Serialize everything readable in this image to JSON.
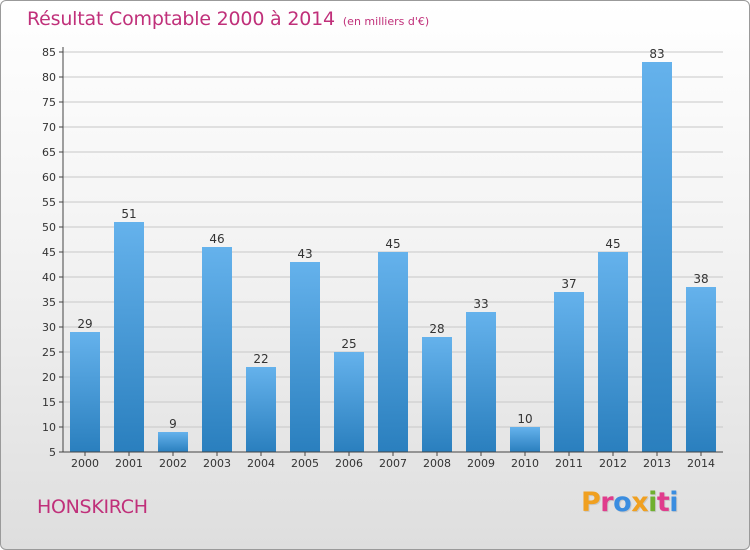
{
  "title": "Résultat Comptable 2000 à 2014",
  "unit": "(en milliers d'€)",
  "commune": "HONSKIRCH",
  "logo": {
    "text": "Proxiti",
    "colors": [
      "#f0a020",
      "#e03c8c",
      "#3a8de0",
      "#f0a020",
      "#70b030",
      "#e03c8c",
      "#3a8de0"
    ]
  },
  "colors": {
    "title": "#c0307a",
    "bar_top": "#65b2ec",
    "bar_bottom": "#2a7fbe",
    "grid": "#c8c8c8",
    "axis": "#444444",
    "label": "#333333"
  },
  "chart_data": {
    "type": "bar",
    "title": "Résultat Comptable 2000 à 2014",
    "subtitle": "(en milliers d'€)",
    "categories": [
      "2000",
      "2001",
      "2002",
      "2003",
      "2004",
      "2005",
      "2006",
      "2007",
      "2008",
      "2009",
      "2010",
      "2011",
      "2012",
      "2013",
      "2014"
    ],
    "values": [
      29,
      51,
      9,
      46,
      22,
      43,
      25,
      45,
      28,
      33,
      10,
      37,
      45,
      83,
      38
    ],
    "ylim": [
      5,
      85
    ],
    "yticks": [
      5,
      10,
      15,
      20,
      25,
      30,
      35,
      40,
      45,
      50,
      55,
      60,
      65,
      70,
      75,
      80,
      85
    ],
    "grid": true,
    "xlabel": "",
    "ylabel": ""
  }
}
